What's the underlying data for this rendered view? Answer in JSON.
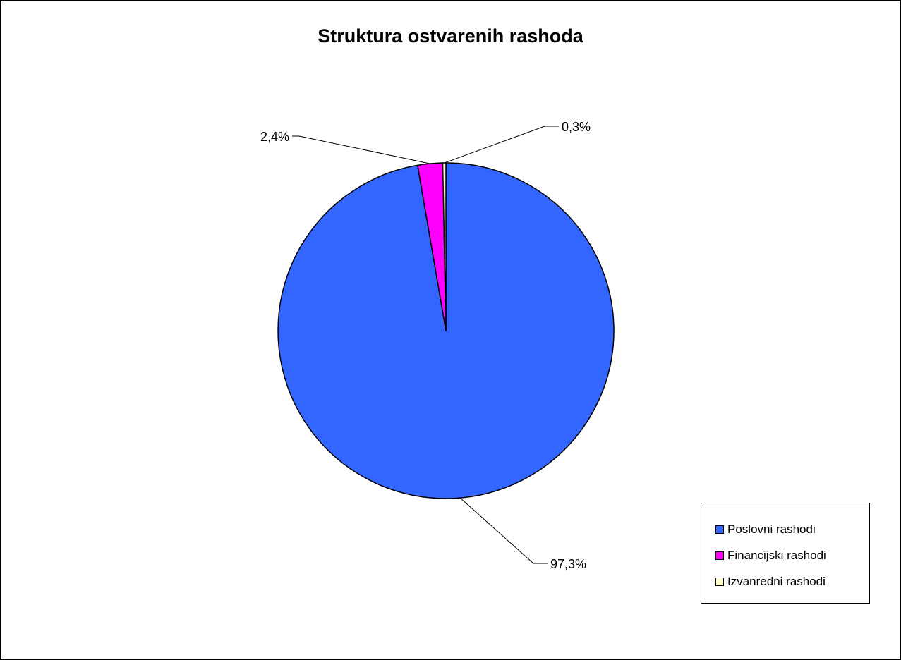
{
  "chart_data": {
    "type": "pie",
    "title": "Struktura ostvarenih rashoda",
    "series": [
      {
        "name": "",
        "labels": [
          "Poslovni rashodi",
          "Financijski rashodi",
          "Izvanredni rashodi"
        ],
        "values": [
          97.3,
          2.4,
          0.3
        ],
        "data_labels": [
          "97,3%",
          "2,4%",
          "0,3%"
        ]
      }
    ],
    "colors": [
      "#3366FF",
      "#FF00FF",
      "#FFFFCC"
    ],
    "legend": {
      "position": "bottom-right",
      "entries": [
        "Poslovni rashodi",
        "Financijski rashodi",
        "Izvanredni rashodi"
      ]
    },
    "start_angle": "12 o'clock, clockwise"
  }
}
